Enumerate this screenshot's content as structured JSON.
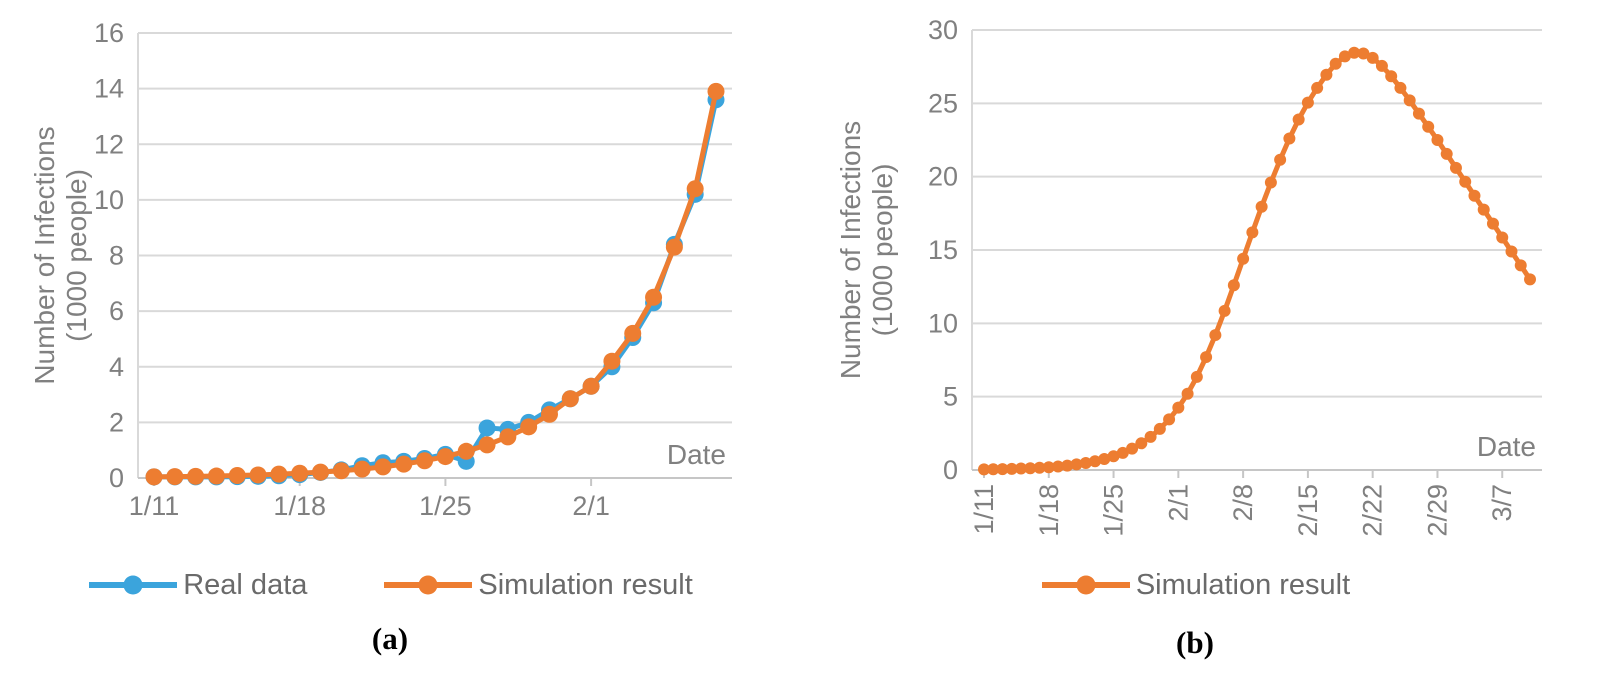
{
  "page": {
    "caption_a": "(a)",
    "caption_b": "(b)"
  },
  "theme": {
    "background": "#FFFFFF",
    "grid_color": "#D9D9D9",
    "axis_color": "#C6C6C6",
    "axis_text_color": "#808080",
    "legend_text_color": "#6A6A6A",
    "caption_color": "#000000",
    "real_data_color": "#3BA4DC",
    "simulation_color": "#ED7D31"
  },
  "chart_data": [
    {
      "id": "a",
      "type": "line",
      "title": "",
      "xlabel": "Date",
      "ylabel_line1": "Number of Infections",
      "ylabel_line2": "(1000 people)",
      "ylim": [
        0,
        16
      ],
      "yticks": [
        0,
        2,
        4,
        6,
        8,
        10,
        12,
        14,
        16
      ],
      "xtick_labels": [
        "1/11",
        "1/18",
        "1/25",
        "2/1"
      ],
      "xtick_rotated": false,
      "grid": "horizontal",
      "legend_position": "bottom",
      "categories": [
        "1/11",
        "1/12",
        "1/13",
        "1/14",
        "1/15",
        "1/16",
        "1/17",
        "1/18",
        "1/19",
        "1/20",
        "1/21",
        "1/22",
        "1/23",
        "1/24",
        "1/25",
        "1/26",
        "1/27",
        "1/28",
        "1/29",
        "1/30",
        "1/31",
        "2/1",
        "2/2",
        "2/3",
        "2/4",
        "2/5",
        "2/6",
        "2/7"
      ],
      "series": [
        {
          "name": "Real data",
          "color": "#3BA4DC",
          "values": [
            0.04,
            0.04,
            0.04,
            0.04,
            0.05,
            0.06,
            0.08,
            0.12,
            0.2,
            0.29,
            0.44,
            0.55,
            0.6,
            0.7,
            0.85,
            0.6,
            1.8,
            1.75,
            2.0,
            2.45,
            2.85,
            3.3,
            4.0,
            5.05,
            6.3,
            8.4,
            10.2,
            13.6
          ]
        },
        {
          "name": "Simulation result",
          "color": "#ED7D31",
          "values": [
            0.04,
            0.05,
            0.06,
            0.07,
            0.09,
            0.11,
            0.14,
            0.17,
            0.21,
            0.26,
            0.32,
            0.4,
            0.5,
            0.62,
            0.77,
            0.96,
            1.19,
            1.48,
            1.84,
            2.29,
            2.85,
            3.3,
            4.2,
            5.2,
            6.5,
            8.3,
            10.4,
            13.9
          ]
        }
      ]
    },
    {
      "id": "b",
      "type": "line",
      "title": "",
      "xlabel": "Date",
      "ylabel_line1": "Number of Infections",
      "ylabel_line2": "(1000 people)",
      "ylim": [
        0,
        30
      ],
      "yticks": [
        0,
        5,
        10,
        15,
        20,
        25,
        30
      ],
      "xtick_labels": [
        "1/11",
        "1/18",
        "1/25",
        "2/1",
        "2/8",
        "2/15",
        "2/22",
        "2/29",
        "3/7"
      ],
      "xtick_rotated": true,
      "grid": "horizontal",
      "legend_position": "bottom",
      "categories": [
        "1/11",
        "1/12",
        "1/13",
        "1/14",
        "1/15",
        "1/16",
        "1/17",
        "1/18",
        "1/19",
        "1/20",
        "1/21",
        "1/22",
        "1/23",
        "1/24",
        "1/25",
        "1/26",
        "1/27",
        "1/28",
        "1/29",
        "1/30",
        "1/31",
        "2/1",
        "2/2",
        "2/3",
        "2/4",
        "2/5",
        "2/6",
        "2/7",
        "2/8",
        "2/9",
        "2/10",
        "2/11",
        "2/12",
        "2/13",
        "2/14",
        "2/15",
        "2/16",
        "2/17",
        "2/18",
        "2/19",
        "2/20",
        "2/21",
        "2/22",
        "2/23",
        "2/24",
        "2/25",
        "2/26",
        "2/27",
        "2/28",
        "2/29",
        "3/1",
        "3/2",
        "3/3",
        "3/4",
        "3/5",
        "3/6",
        "3/7",
        "3/8",
        "3/9",
        "3/10"
      ],
      "series": [
        {
          "name": "Simulation result",
          "color": "#ED7D31",
          "values": [
            0.04,
            0.05,
            0.06,
            0.08,
            0.1,
            0.12,
            0.15,
            0.19,
            0.24,
            0.3,
            0.38,
            0.48,
            0.6,
            0.75,
            0.94,
            1.17,
            1.46,
            1.82,
            2.26,
            2.8,
            3.45,
            4.25,
            5.2,
            6.35,
            7.7,
            9.2,
            10.85,
            12.6,
            14.4,
            16.2,
            17.95,
            19.6,
            21.15,
            22.6,
            23.9,
            25.05,
            26.05,
            26.95,
            27.7,
            28.2,
            28.45,
            28.4,
            28.1,
            27.55,
            26.85,
            26.05,
            25.2,
            24.3,
            23.4,
            22.5,
            21.55,
            20.6,
            19.65,
            18.7,
            17.75,
            16.8,
            15.85,
            14.9,
            13.95,
            13.0
          ]
        }
      ]
    }
  ]
}
